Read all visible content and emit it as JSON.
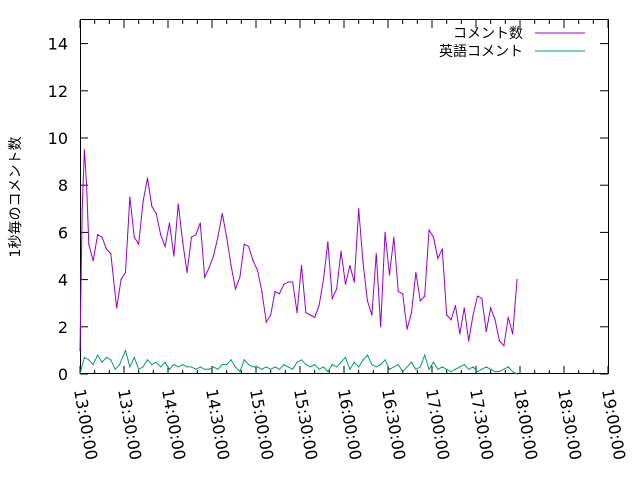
{
  "chart_data": {
    "type": "line",
    "title": "",
    "xlabel": "",
    "ylabel": "1秒毎のコメント数",
    "ylim": [
      0,
      15
    ],
    "yticks": [
      0,
      2,
      4,
      6,
      8,
      10,
      12,
      14
    ],
    "xlim": [
      "13:00:00",
      "19:00:00"
    ],
    "xticks": [
      "13:00:00",
      "13:30:00",
      "14:00:00",
      "14:30:00",
      "15:00:00",
      "15:30:00",
      "16:00:00",
      "16:30:00",
      "17:00:00",
      "17:30:00",
      "18:00:00",
      "18:30:00",
      "19:00:00"
    ],
    "legend_position": "top-right",
    "grid": false,
    "series": [
      {
        "name": "コメント数",
        "color": "#9400d3",
        "points": [
          [
            "13:00:00",
            1.0
          ],
          [
            "13:01:30",
            7.0
          ],
          [
            "13:03:00",
            9.5
          ],
          [
            "13:04:30",
            8.0
          ],
          [
            "13:06:00",
            5.5
          ],
          [
            "13:09:00",
            4.8
          ],
          [
            "13:12:00",
            5.9
          ],
          [
            "13:15:00",
            5.8
          ],
          [
            "13:18:00",
            5.3
          ],
          [
            "13:21:00",
            5.1
          ],
          [
            "13:25:00",
            2.8
          ],
          [
            "13:28:00",
            4.0
          ],
          [
            "13:31:00",
            4.3
          ],
          [
            "13:34:00",
            7.5
          ],
          [
            "13:37:00",
            5.8
          ],
          [
            "13:40:00",
            5.5
          ],
          [
            "13:43:00",
            7.3
          ],
          [
            "13:46:00",
            8.3
          ],
          [
            "13:49:00",
            7.1
          ],
          [
            "13:52:00",
            6.8
          ],
          [
            "13:55:00",
            5.9
          ],
          [
            "13:58:00",
            5.4
          ],
          [
            "14:01:00",
            6.4
          ],
          [
            "14:04:00",
            5.0
          ],
          [
            "14:07:00",
            7.2
          ],
          [
            "14:10:00",
            5.6
          ],
          [
            "14:13:00",
            4.3
          ],
          [
            "14:16:00",
            5.8
          ],
          [
            "14:19:00",
            5.9
          ],
          [
            "14:22:00",
            6.4
          ],
          [
            "14:25:00",
            4.1
          ],
          [
            "14:28:00",
            4.5
          ],
          [
            "14:31:00",
            5.0
          ],
          [
            "14:34:00",
            5.8
          ],
          [
            "14:37:00",
            6.8
          ],
          [
            "14:40:00",
            5.8
          ],
          [
            "14:43:00",
            4.6
          ],
          [
            "14:46:00",
            3.6
          ],
          [
            "14:49:00",
            4.1
          ],
          [
            "14:52:00",
            5.5
          ],
          [
            "14:55:00",
            5.4
          ],
          [
            "14:58:00",
            4.8
          ],
          [
            "15:01:00",
            4.4
          ],
          [
            "15:04:00",
            3.5
          ],
          [
            "15:07:00",
            2.2
          ],
          [
            "15:10:00",
            2.5
          ],
          [
            "15:13:00",
            3.5
          ],
          [
            "15:16:00",
            3.4
          ],
          [
            "15:19:00",
            3.8
          ],
          [
            "15:22:00",
            3.9
          ],
          [
            "15:25:00",
            3.9
          ],
          [
            "15:28:00",
            2.6
          ],
          [
            "15:31:00",
            4.6
          ],
          [
            "15:34:00",
            2.6
          ],
          [
            "15:37:00",
            2.5
          ],
          [
            "15:40:00",
            2.4
          ],
          [
            "15:43:00",
            2.9
          ],
          [
            "15:46:00",
            4.0
          ],
          [
            "15:49:00",
            5.6
          ],
          [
            "15:52:00",
            3.2
          ],
          [
            "15:55:00",
            3.6
          ],
          [
            "15:58:00",
            5.2
          ],
          [
            "16:01:00",
            3.8
          ],
          [
            "16:04:00",
            4.6
          ],
          [
            "16:07:00",
            3.9
          ],
          [
            "16:10:00",
            7.0
          ],
          [
            "16:13:00",
            4.7
          ],
          [
            "16:16:00",
            3.1
          ],
          [
            "16:19:00",
            2.5
          ],
          [
            "16:22:00",
            5.1
          ],
          [
            "16:25:00",
            2.0
          ],
          [
            "16:28:00",
            6.0
          ],
          [
            "16:31:00",
            4.2
          ],
          [
            "16:34:00",
            5.8
          ],
          [
            "16:37:00",
            3.5
          ],
          [
            "16:40:00",
            3.4
          ],
          [
            "16:43:00",
            1.9
          ],
          [
            "16:46:00",
            2.6
          ],
          [
            "16:49:00",
            4.3
          ],
          [
            "16:52:00",
            3.1
          ],
          [
            "16:55:00",
            3.3
          ],
          [
            "16:58:00",
            6.1
          ],
          [
            "17:01:00",
            5.8
          ],
          [
            "17:04:00",
            4.9
          ],
          [
            "17:07:00",
            5.3
          ],
          [
            "17:10:00",
            2.5
          ],
          [
            "17:13:00",
            2.3
          ],
          [
            "17:16:00",
            2.9
          ],
          [
            "17:19:00",
            1.7
          ],
          [
            "17:22:00",
            2.8
          ],
          [
            "17:25:00",
            1.4
          ],
          [
            "17:28:00",
            2.5
          ],
          [
            "17:31:00",
            3.3
          ],
          [
            "17:34:00",
            3.2
          ],
          [
            "17:37:00",
            1.8
          ],
          [
            "17:40:00",
            2.8
          ],
          [
            "17:43:00",
            2.3
          ],
          [
            "17:46:00",
            1.4
          ],
          [
            "17:49:00",
            1.2
          ],
          [
            "17:52:00",
            2.4
          ],
          [
            "17:55:00",
            1.7
          ],
          [
            "17:58:00",
            4.0
          ]
        ]
      },
      {
        "name": "英語コメント",
        "color": "#009e73",
        "points": [
          [
            "13:00:00",
            0.0
          ],
          [
            "13:03:00",
            0.7
          ],
          [
            "13:06:00",
            0.6
          ],
          [
            "13:09:00",
            0.4
          ],
          [
            "13:12:00",
            0.8
          ],
          [
            "13:15:00",
            0.5
          ],
          [
            "13:18:00",
            0.7
          ],
          [
            "13:21:00",
            0.6
          ],
          [
            "13:24:00",
            0.2
          ],
          [
            "13:27:00",
            0.4
          ],
          [
            "13:31:00",
            1.0
          ],
          [
            "13:34:00",
            0.3
          ],
          [
            "13:37:00",
            0.7
          ],
          [
            "13:40:00",
            0.2
          ],
          [
            "13:43:00",
            0.3
          ],
          [
            "13:46:00",
            0.6
          ],
          [
            "13:49:00",
            0.4
          ],
          [
            "13:52:00",
            0.5
          ],
          [
            "13:55:00",
            0.3
          ],
          [
            "13:58:00",
            0.5
          ],
          [
            "14:01:00",
            0.2
          ],
          [
            "14:04:00",
            0.4
          ],
          [
            "14:07:00",
            0.3
          ],
          [
            "14:10:00",
            0.4
          ],
          [
            "14:13:00",
            0.3
          ],
          [
            "14:16:00",
            0.3
          ],
          [
            "14:19:00",
            0.2
          ],
          [
            "14:22:00",
            0.3
          ],
          [
            "14:25:00",
            0.2
          ],
          [
            "14:28:00",
            0.2
          ],
          [
            "14:31:00",
            0.3
          ],
          [
            "14:34:00",
            0.2
          ],
          [
            "14:37:00",
            0.4
          ],
          [
            "14:40:00",
            0.4
          ],
          [
            "14:43:00",
            0.6
          ],
          [
            "14:46:00",
            0.3
          ],
          [
            "14:49:00",
            0.1
          ],
          [
            "14:52:00",
            0.6
          ],
          [
            "14:55:00",
            0.4
          ],
          [
            "14:58:00",
            0.3
          ],
          [
            "15:01:00",
            0.3
          ],
          [
            "15:04:00",
            0.2
          ],
          [
            "15:07:00",
            0.3
          ],
          [
            "15:10:00",
            0.2
          ],
          [
            "15:13:00",
            0.3
          ],
          [
            "15:16:00",
            0.2
          ],
          [
            "15:19:00",
            0.4
          ],
          [
            "15:22:00",
            0.3
          ],
          [
            "15:25:00",
            0.2
          ],
          [
            "15:28:00",
            0.5
          ],
          [
            "15:31:00",
            0.6
          ],
          [
            "15:34:00",
            0.4
          ],
          [
            "15:37:00",
            0.3
          ],
          [
            "15:40:00",
            0.4
          ],
          [
            "15:43:00",
            0.2
          ],
          [
            "15:46:00",
            0.3
          ],
          [
            "15:49:00",
            0.1
          ],
          [
            "15:52:00",
            0.4
          ],
          [
            "15:55:00",
            0.3
          ],
          [
            "15:58:00",
            0.5
          ],
          [
            "16:01:00",
            0.7
          ],
          [
            "16:04:00",
            0.2
          ],
          [
            "16:07:00",
            0.5
          ],
          [
            "16:10:00",
            0.3
          ],
          [
            "16:13:00",
            0.6
          ],
          [
            "16:16:00",
            0.8
          ],
          [
            "16:19:00",
            0.4
          ],
          [
            "16:22:00",
            0.3
          ],
          [
            "16:25:00",
            0.4
          ],
          [
            "16:28:00",
            0.6
          ],
          [
            "16:31:00",
            0.2
          ],
          [
            "16:34:00",
            0.3
          ],
          [
            "16:37:00",
            0.4
          ],
          [
            "16:40:00",
            0.1
          ],
          [
            "16:43:00",
            0.3
          ],
          [
            "16:46:00",
            0.5
          ],
          [
            "16:49:00",
            0.2
          ],
          [
            "16:52:00",
            0.3
          ],
          [
            "16:55:00",
            0.8
          ],
          [
            "16:58:00",
            0.2
          ],
          [
            "17:01:00",
            0.5
          ],
          [
            "17:04:00",
            0.2
          ],
          [
            "17:07:00",
            0.3
          ],
          [
            "17:10:00",
            0.2
          ],
          [
            "17:13:00",
            0.1
          ],
          [
            "17:16:00",
            0.2
          ],
          [
            "17:19:00",
            0.3
          ],
          [
            "17:22:00",
            0.4
          ],
          [
            "17:25:00",
            0.2
          ],
          [
            "17:28:00",
            0.3
          ],
          [
            "17:31:00",
            0.1
          ],
          [
            "17:34:00",
            0.2
          ],
          [
            "17:37:00",
            0.3
          ],
          [
            "17:40:00",
            0.2
          ],
          [
            "17:43:00",
            0.1
          ],
          [
            "17:46:00",
            0.1
          ],
          [
            "17:49:00",
            0.2
          ],
          [
            "17:52:00",
            0.3
          ],
          [
            "17:55:00",
            0.1
          ],
          [
            "17:58:00",
            0.0
          ]
        ]
      }
    ]
  }
}
